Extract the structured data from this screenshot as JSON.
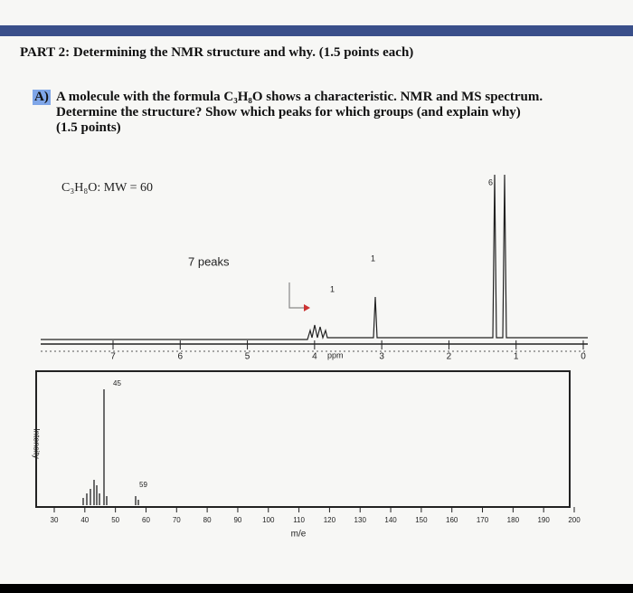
{
  "header": {
    "title": "PART 2: Determining the NMR structure and why. (1.5 points each)"
  },
  "question": {
    "label": "A)",
    "text": "A molecule with the formula C₃H₈O shows a characteristic. NMR and MS spectrum. Determine the structure? Show which peaks for which groups (and explain why) (1.5 points)"
  },
  "nmr": {
    "formula_label": "C₃H₈O: MW = 60",
    "annotation": "7 peaks",
    "integrations": [
      "6",
      "1",
      "1"
    ],
    "axis_ticks": [
      "7",
      "6",
      "5",
      "4",
      "3",
      "2",
      "1",
      "0"
    ],
    "axis_label": "ppm"
  },
  "ms": {
    "y_label": "Intensity",
    "x_label": "m/e",
    "peak_labels": [
      "45",
      "59"
    ],
    "x_ticks": [
      "30",
      "40",
      "50",
      "60",
      "70",
      "80",
      "90",
      "100",
      "110",
      "120",
      "130",
      "140",
      "150",
      "160",
      "170",
      "180",
      "190",
      "200"
    ]
  }
}
